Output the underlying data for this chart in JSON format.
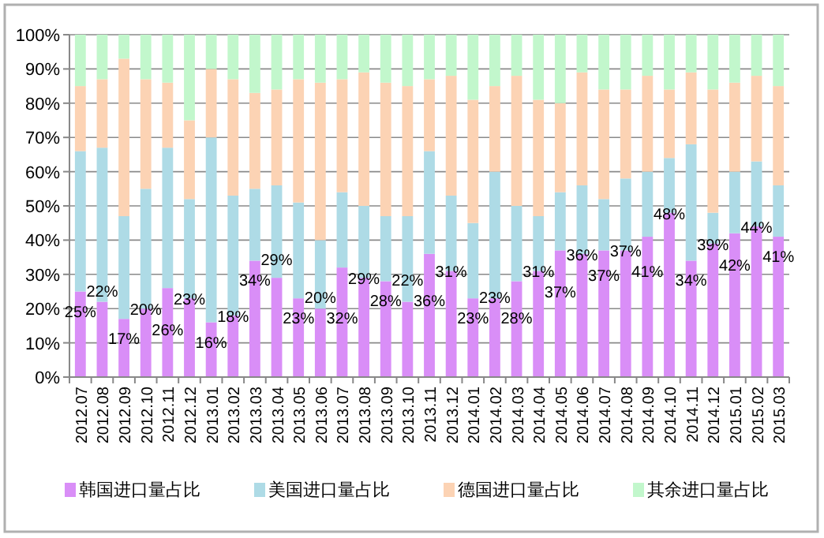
{
  "chart_data": {
    "type": "bar",
    "stacked": true,
    "grid": "y",
    "legend": "bottom",
    "ylim": [
      0,
      100
    ],
    "yticks": [
      {
        "value": 0,
        "label": "0%"
      },
      {
        "value": 10,
        "label": "10%"
      },
      {
        "value": 20,
        "label": "20%"
      },
      {
        "value": 30,
        "label": "30%"
      },
      {
        "value": 40,
        "label": "40%"
      },
      {
        "value": 50,
        "label": "50%"
      },
      {
        "value": 60,
        "label": "60%"
      },
      {
        "value": 70,
        "label": "70%"
      },
      {
        "value": 80,
        "label": "80%"
      },
      {
        "value": 90,
        "label": "90%"
      },
      {
        "value": 100,
        "label": "100%"
      }
    ],
    "categories": [
      "2012.07",
      "2012.08",
      "2012.09",
      "2012.10",
      "2012.11",
      "2012.12",
      "2013.01",
      "2013.02",
      "2013.03",
      "2013.04",
      "2013.05",
      "2013.06",
      "2013.07",
      "2013.08",
      "2013.09",
      "2013.10",
      "2013.11",
      "2013.12",
      "2014.01",
      "2014.02",
      "2014.03",
      "2014.04",
      "2014.05",
      "2014.06",
      "2014.07",
      "2014.08",
      "2014.09",
      "2014.10",
      "2014.11",
      "2014.12",
      "2015.01",
      "2015.02",
      "2015.03"
    ],
    "series": [
      {
        "name": "韩国进口量占比",
        "color": "#d98ef7",
        "values": [
          25,
          22,
          17,
          20,
          26,
          23,
          16,
          18,
          34,
          29,
          23,
          20,
          32,
          29,
          28,
          22,
          36,
          31,
          23,
          23,
          28,
          31,
          37,
          36,
          37,
          37,
          41,
          48,
          34,
          39,
          42,
          44,
          41
        ],
        "value_labels": [
          "25%",
          "22%",
          "17%",
          "20%",
          "26%",
          "23%",
          "16%",
          "18%",
          "34%",
          "29%",
          "23%",
          "20%",
          "32%",
          "29%",
          "28%",
          "22%",
          "36%",
          "31%",
          "23%",
          "23%",
          "28%",
          "31%",
          "37%",
          "36%",
          "37%",
          "37%",
          "41%",
          "48%",
          "34%",
          "39%",
          "42%",
          "44%",
          "41%"
        ]
      },
      {
        "name": "美国进口量占比",
        "color": "#aedbe6",
        "values": [
          41,
          45,
          30,
          35,
          41,
          29,
          54,
          35,
          21,
          27,
          28,
          20,
          22,
          21,
          19,
          25,
          30,
          22,
          22,
          37,
          22,
          16,
          17,
          20,
          15,
          21,
          19,
          16,
          34,
          9,
          18,
          19,
          15
        ]
      },
      {
        "name": "德国进口量占比",
        "color": "#fcd3b4",
        "values": [
          19,
          20,
          46,
          32,
          19,
          23,
          20,
          34,
          28,
          28,
          36,
          46,
          33,
          39,
          39,
          38,
          21,
          35,
          36,
          25,
          38,
          34,
          26,
          33,
          32,
          26,
          28,
          20,
          21,
          36,
          26,
          25,
          29
        ]
      },
      {
        "name": "其余进口量占比",
        "color": "#c2f7cc",
        "values": [
          15,
          13,
          7,
          13,
          14,
          25,
          10,
          13,
          17,
          16,
          13,
          14,
          13,
          11,
          14,
          15,
          13,
          12,
          19,
          15,
          12,
          19,
          20,
          11,
          16,
          16,
          12,
          16,
          11,
          16,
          14,
          12,
          15
        ]
      }
    ]
  }
}
